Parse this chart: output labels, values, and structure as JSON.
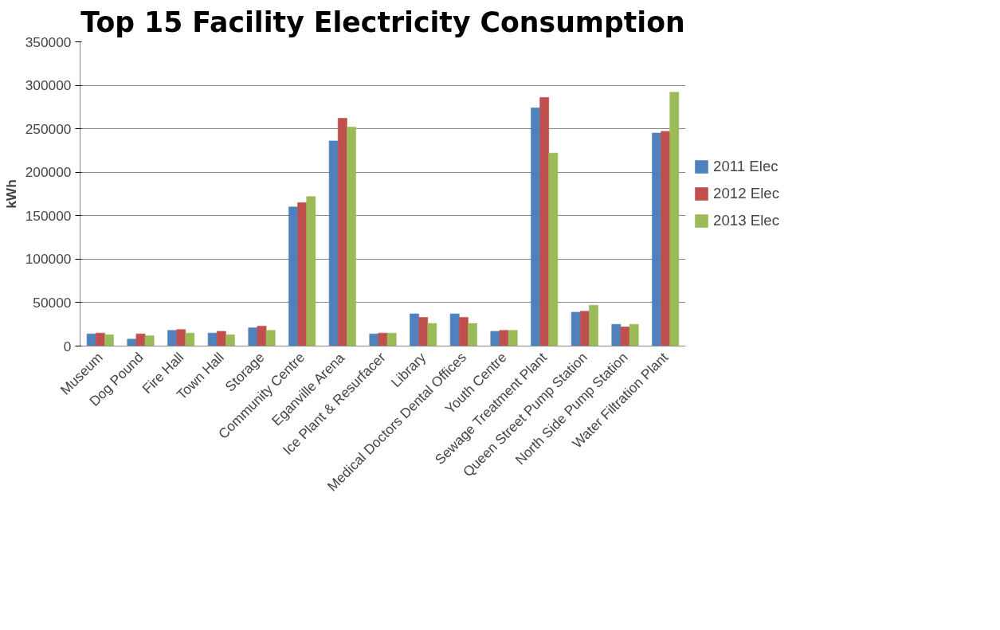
{
  "chart_data": {
    "type": "bar",
    "title": "Top 15 Facility Electricity Consumption",
    "ylabel": "kWh",
    "categories": [
      "Museum",
      "Dog Pound",
      "Fire Hall",
      "Town Hall",
      "Storage",
      "Community Centre",
      "Eganville Arena",
      "Ice Plant & Resurfacer",
      "Library",
      "Medical Doctors Dental Offices",
      "Youth Centre",
      "Sewage Treatment Plant",
      "Queen Street Pump Station",
      "North Side Pump Station",
      "Water Filtration Plant"
    ],
    "series": [
      {
        "name": "2011 Elec",
        "color": "#4f81bd",
        "values": [
          14000,
          8000,
          18000,
          15000,
          21000,
          160000,
          236000,
          14000,
          37000,
          37000,
          17000,
          274000,
          39000,
          25000,
          245000
        ]
      },
      {
        "name": "2012 Elec",
        "color": "#c0504d",
        "values": [
          15000,
          14000,
          19000,
          17000,
          23000,
          165000,
          262000,
          15000,
          33000,
          33000,
          18000,
          286000,
          40000,
          22000,
          247000
        ]
      },
      {
        "name": "2013 Elec",
        "color": "#9bbb59",
        "values": [
          13000,
          12000,
          15000,
          13000,
          18000,
          172000,
          252000,
          15000,
          26000,
          26000,
          18000,
          222000,
          47000,
          25000,
          292000
        ]
      }
    ],
    "ylim": [
      0,
      350000
    ],
    "yticks": [
      0,
      50000,
      100000,
      150000,
      200000,
      250000,
      300000,
      350000
    ],
    "grid": "y",
    "legend": "right"
  }
}
